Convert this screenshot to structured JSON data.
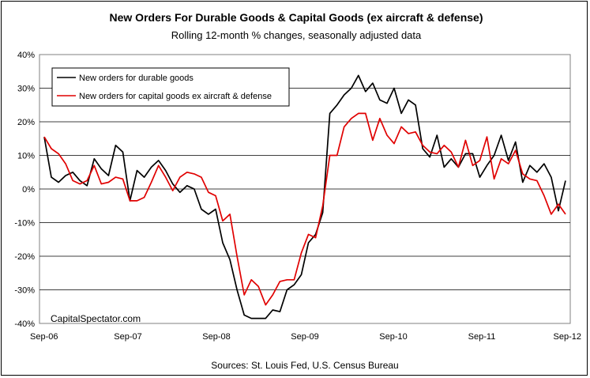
{
  "chart_data": {
    "type": "line",
    "title": "New Orders For Durable Goods & Capital Goods (ex aircraft & defense)",
    "subtitle": "Rolling 12-month % changes, seasonally adjusted data",
    "source": "Sources: St. Louis Fed, U.S. Census Bureau",
    "watermark": "CapitalSpectator.com",
    "x_tick_labels": [
      "Sep-06",
      "Sep-07",
      "Sep-08",
      "Sep-09",
      "Sep-10",
      "Sep-11",
      "Sep-12"
    ],
    "x_start": "Sep-06",
    "x_end": "Sep-12",
    "y_tick_labels": [
      "40%",
      "30%",
      "20%",
      "10%",
      "0%",
      "-10%",
      "-20%",
      "-30%",
      "-40%"
    ],
    "ylim": [
      -40,
      40
    ],
    "grid": "horizontal",
    "legend_position": "top-left",
    "series": [
      {
        "name": "New orders for durable goods",
        "color": "#000000",
        "values": [
          15.5,
          3.5,
          2.0,
          4.0,
          5.0,
          2.5,
          1.0,
          9.0,
          6.0,
          4.0,
          13.0,
          11.0,
          -3.5,
          5.5,
          3.5,
          6.5,
          8.5,
          5.5,
          1.5,
          -1.0,
          1.0,
          0.0,
          -6.0,
          -7.5,
          -6.0,
          -16.0,
          -21.0,
          -30.0,
          -37.5,
          -38.5,
          -38.5,
          -38.5,
          -36.0,
          -36.5,
          -30.0,
          -28.5,
          -25.5,
          -16.0,
          -13.5,
          -7.0,
          22.5,
          25.0,
          28.0,
          30.0,
          33.8,
          29.0,
          31.5,
          26.5,
          25.5,
          30.0,
          22.5,
          26.5,
          25.0,
          12.0,
          9.5,
          16.0,
          6.5,
          9.0,
          6.5,
          10.5,
          10.5,
          3.5,
          7.0,
          10.0,
          16.0,
          8.5,
          14.0,
          2.0,
          7.0,
          5.0,
          7.5,
          3.5,
          -6.5,
          2.5
        ]
      },
      {
        "name": "New orders for capital goods ex aircraft & defense",
        "color": "#e00000",
        "values": [
          15.5,
          12.0,
          10.5,
          7.5,
          2.5,
          1.5,
          2.5,
          7.0,
          1.5,
          2.0,
          3.5,
          3.0,
          -3.5,
          -3.5,
          -2.5,
          2.0,
          7.0,
          3.5,
          -0.5,
          3.5,
          5.0,
          4.5,
          3.5,
          -1.0,
          -2.0,
          -9.5,
          -7.5,
          -20.0,
          -31.5,
          -27.0,
          -29.0,
          -34.5,
          -31.5,
          -27.5,
          -27.0,
          -27.0,
          -19.0,
          -13.5,
          -14.5,
          -5.0,
          10.0,
          10.0,
          18.5,
          21.0,
          22.5,
          22.5,
          14.5,
          21.0,
          16.0,
          13.5,
          18.5,
          16.5,
          17.0,
          13.0,
          11.0,
          10.5,
          13.0,
          11.0,
          6.5,
          14.5,
          7.0,
          8.5,
          15.5,
          3.0,
          9.0,
          7.5,
          11.5,
          4.5,
          3.0,
          2.5,
          -2.0,
          -7.5,
          -4.5,
          -7.5
        ]
      }
    ]
  }
}
